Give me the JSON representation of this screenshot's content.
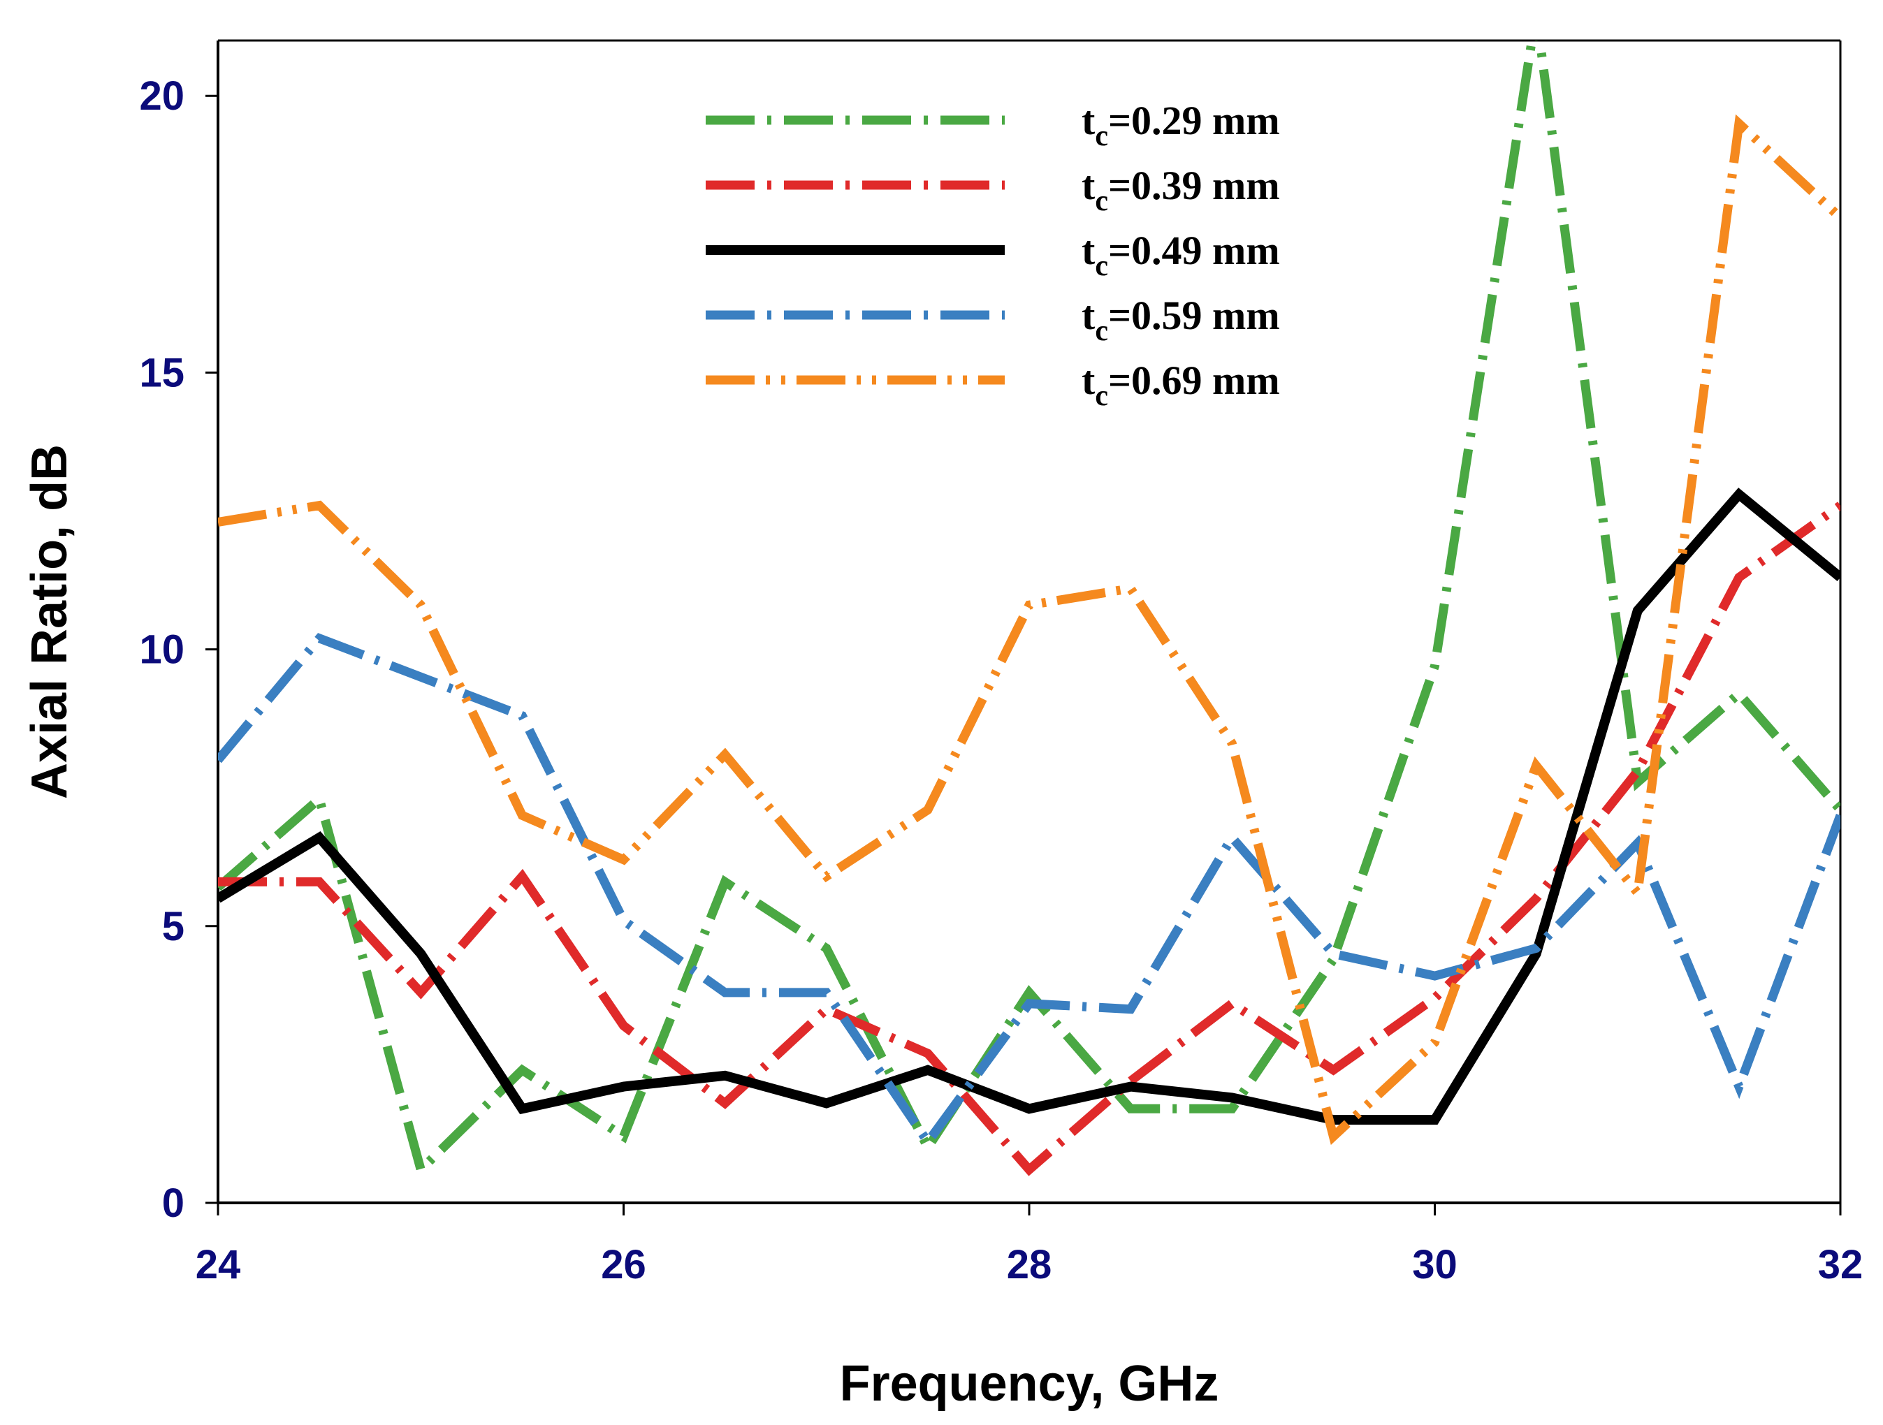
{
  "chart_data": {
    "type": "line",
    "title": "",
    "xlabel": "Frequency, GHz",
    "ylabel": "Axial Ratio, dB",
    "xlim": [
      24,
      32
    ],
    "ylim": [
      0,
      21
    ],
    "xticks": [
      24,
      26,
      28,
      30,
      32
    ],
    "yticks": [
      0,
      5,
      10,
      15,
      20
    ],
    "xtick_labels": [
      "24",
      "26",
      "28",
      "30",
      "32"
    ],
    "ytick_labels": [
      "0",
      "5",
      "10",
      "15",
      "20"
    ],
    "grid": false,
    "legend_position": "top-center",
    "x": [
      24,
      24.5,
      25,
      25.5,
      26,
      26.5,
      27,
      27.5,
      28,
      28.5,
      29,
      29.5,
      30,
      30.5,
      31,
      31.5,
      32
    ],
    "series": [
      {
        "name": "tc=0.29 mm",
        "label_main": "t",
        "label_sub": "c",
        "label_rest": "=0.29 mm",
        "color": "#4aa843",
        "style": "dash-dot",
        "values": [
          5.7,
          7.3,
          0.6,
          2.4,
          1.2,
          5.8,
          4.6,
          1.0,
          3.8,
          1.7,
          1.7,
          4.4,
          9.7,
          21.5,
          7.6,
          9.2,
          7.1
        ]
      },
      {
        "name": "tc=0.39 mm",
        "label_main": "t",
        "label_sub": "c",
        "label_rest": "=0.39 mm",
        "color": "#e02a2a",
        "style": "dash-dot",
        "values": [
          5.8,
          5.8,
          3.8,
          5.9,
          3.2,
          1.8,
          3.5,
          2.7,
          0.6,
          2.2,
          3.6,
          2.4,
          3.7,
          5.5,
          7.8,
          11.3,
          12.6
        ]
      },
      {
        "name": "tc=0.49 mm",
        "label_main": "t",
        "label_sub": "c",
        "label_rest": "=0.49 mm",
        "color": "#000000",
        "style": "solid",
        "values": [
          5.5,
          6.6,
          4.5,
          1.7,
          2.1,
          2.3,
          1.8,
          2.4,
          1.7,
          2.1,
          1.9,
          1.5,
          1.5,
          4.5,
          10.7,
          12.8,
          11.3
        ]
      },
      {
        "name": "tc=0.59 mm",
        "label_main": "t",
        "label_sub": "c",
        "label_rest": "=0.59 mm",
        "color": "#3a7fc1",
        "style": "dash-dot",
        "values": [
          8.0,
          10.2,
          9.5,
          8.8,
          5.1,
          3.8,
          3.8,
          1.1,
          3.6,
          3.5,
          6.6,
          4.5,
          4.1,
          4.6,
          6.5,
          2.1,
          7.0
        ]
      },
      {
        "name": "tc=0.69 mm",
        "label_main": "t",
        "label_sub": "c",
        "label_rest": "=0.69 mm",
        "color": "#f5891e",
        "style": "dash-dot-dot",
        "values": [
          12.3,
          12.6,
          10.8,
          7.0,
          6.2,
          8.1,
          5.9,
          7.1,
          10.8,
          11.1,
          8.3,
          1.2,
          2.9,
          7.9,
          5.6,
          19.5,
          17.8
        ]
      }
    ]
  }
}
